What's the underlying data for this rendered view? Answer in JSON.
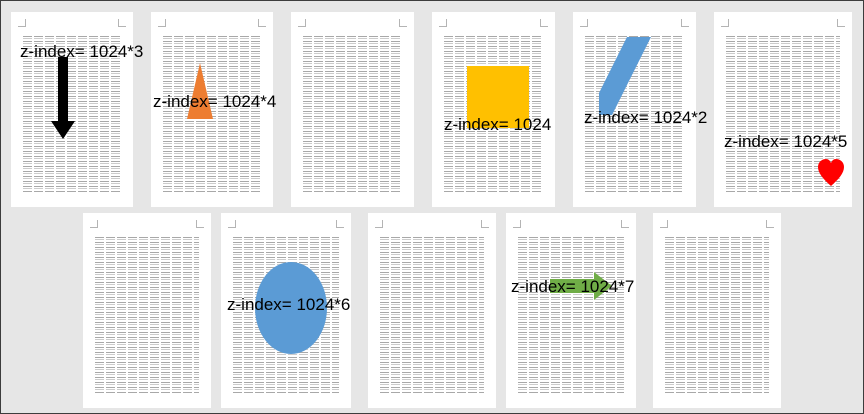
{
  "pages": [
    {
      "label": "z-index= 1024*3",
      "shape": "black-down-arrow",
      "color": "#000000"
    },
    {
      "label": "z-index= 1024*4",
      "shape": "orange-triangle",
      "color": "#ed7d31"
    },
    {
      "label": "",
      "shape": "",
      "color": ""
    },
    {
      "label": "z-index= 1024",
      "shape": "yellow-square",
      "color": "#ffc000"
    },
    {
      "label": "z-index= 1024*2",
      "shape": "blue-parallelogram",
      "color": "#5b9bd5"
    },
    {
      "label": "z-index= 1024*5",
      "shape": "red-heart",
      "color": "#ff0000"
    },
    {
      "label": "",
      "shape": "",
      "color": ""
    },
    {
      "label": "z-index= 1024*6",
      "shape": "blue-ellipse",
      "color": "#5b9bd5"
    },
    {
      "label": "",
      "shape": "",
      "color": ""
    },
    {
      "label": "z-index= 1024*7",
      "shape": "green-right-arrow",
      "color": "#70ad47"
    },
    {
      "label": "",
      "shape": "",
      "color": ""
    }
  ]
}
